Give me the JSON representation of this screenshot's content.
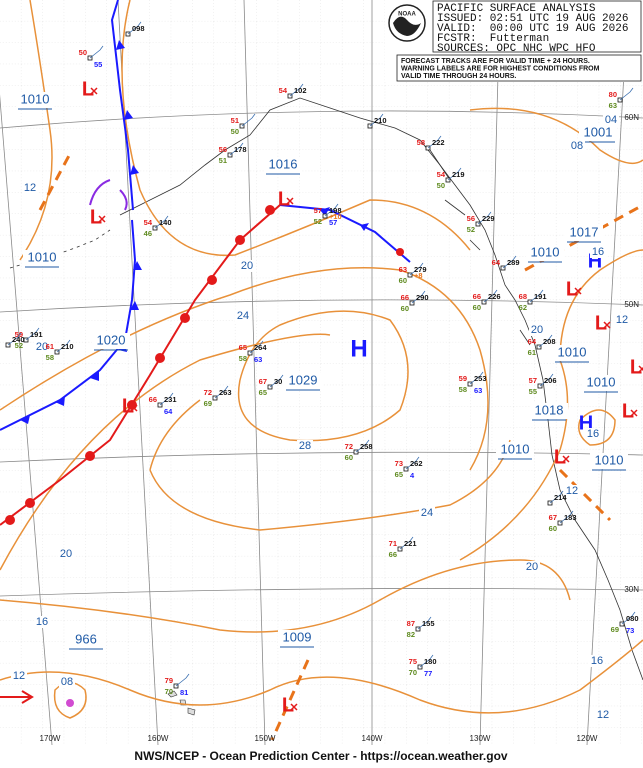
{
  "header": {
    "logo": "NOAA",
    "lines": [
      "PACIFIC SURFACE ANALYSIS",
      "ISSUED: 02:51 UTC 19 AUG 2026",
      "VALID:  00:00 UTC 19 AUG 2026",
      "FCSTR:  Futterman",
      "SOURCES: OPC NHC WPC HFO"
    ]
  },
  "notice": [
    "FORECAST TRACKS ARE FOR VALID TIME + 24 HOURS.",
    "WARNING LABELS ARE FOR HIGHEST CONDITIONS FROM",
    "VALID TIME THROUGH 24 HOURS."
  ],
  "highs": [
    "H",
    "H",
    "H"
  ],
  "lows": [
    "L",
    "L",
    "L",
    "L",
    "L",
    "L",
    "L",
    "L",
    "L",
    "L"
  ],
  "central_pressures": [
    "1010",
    "1016",
    "1010",
    "1020",
    "1029",
    "1009",
    "966",
    "1001",
    "1017",
    "1010",
    "1010",
    "1010",
    "1018",
    "1010",
    "1010"
  ],
  "isobar_labels": [
    "12",
    "20",
    "24",
    "20",
    "28",
    "24",
    "20",
    "16",
    "12",
    "08",
    "16",
    "12",
    "20",
    "12",
    "16",
    "12",
    "08",
    "04",
    "20",
    "16"
  ],
  "longitude_labels": [
    "170W",
    "160W",
    "150W",
    "140W",
    "130W",
    "120W"
  ],
  "latitude_labels": [
    "60N",
    "50N",
    "30N"
  ],
  "stations": [
    {
      "pressure": "098"
    },
    {
      "temp": "50",
      "wave": "55"
    },
    {
      "temp": "54",
      "pressure": "102"
    },
    {
      "temp": "51",
      "dew": "50"
    },
    {
      "temp": "56",
      "dew": "51",
      "pressure": "178"
    },
    {
      "temp": "54",
      "dew": "46",
      "pressure": "140"
    },
    {
      "pressure": "210"
    },
    {
      "temp": "58",
      "pressure": "222"
    },
    {
      "temp": "54",
      "dew": "50",
      "pressure": "219"
    },
    {
      "temp": "56",
      "dew": "52",
      "pressure": "229"
    },
    {
      "temp": "57",
      "dew": "52",
      "pressure": "198",
      "tendency": "+10",
      "wave": "57"
    },
    {
      "temp": "63",
      "dew": "60",
      "pressure": "279",
      "tendency": "+8"
    },
    {
      "temp": "66",
      "dew": "60",
      "pressure": "290"
    },
    {
      "temp": "66",
      "dew": "60",
      "pressure": "226"
    },
    {
      "temp": "64",
      "pressure": "289"
    },
    {
      "temp": "68",
      "dew": "62",
      "pressure": "191"
    },
    {
      "temp": "64",
      "dew": "61",
      "pressure": "208"
    },
    {
      "temp": "59",
      "dew": "58",
      "pressure": "253",
      "wave": "63"
    },
    {
      "temp": "57",
      "dew": "55",
      "pressure": "206"
    },
    {
      "temp": "65",
      "dew": "58",
      "pressure": "264",
      "wave": "63"
    },
    {
      "temp": "67",
      "dew": "65",
      "pressure": "30"
    },
    {
      "temp": "72",
      "dew": "69",
      "pressure": "263"
    },
    {
      "temp": "66",
      "pressure": "231",
      "wave": "64"
    },
    {
      "temp": "61",
      "dew": "58",
      "pressure": "210"
    },
    {
      "temp": "59",
      "dew": "52",
      "pressure": "191"
    },
    {
      "pressure": "240"
    },
    {
      "temp": "72",
      "dew": "60",
      "pressure": "258"
    },
    {
      "temp": "73",
      "dew": "65",
      "pressure": "262",
      "wave": "4"
    },
    {
      "temp": "71",
      "dew": "66",
      "pressure": "221"
    },
    {
      "pressure": "214"
    },
    {
      "temp": "67",
      "dew": "60",
      "pressure": "183"
    },
    {
      "dew": "69",
      "pressure": "080",
      "wave": "73"
    },
    {
      "temp": "87",
      "dew": "82",
      "pressure": "155"
    },
    {
      "temp": "75",
      "dew": "70",
      "pressure": "180",
      "wave": "77"
    },
    {
      "temp": "79",
      "dew": "70",
      "wave": "81"
    },
    {
      "temp": "80",
      "dew": "63"
    }
  ],
  "footer": "NWS/NCEP - Ocean Prediction Center - https://ocean.weather.gov"
}
